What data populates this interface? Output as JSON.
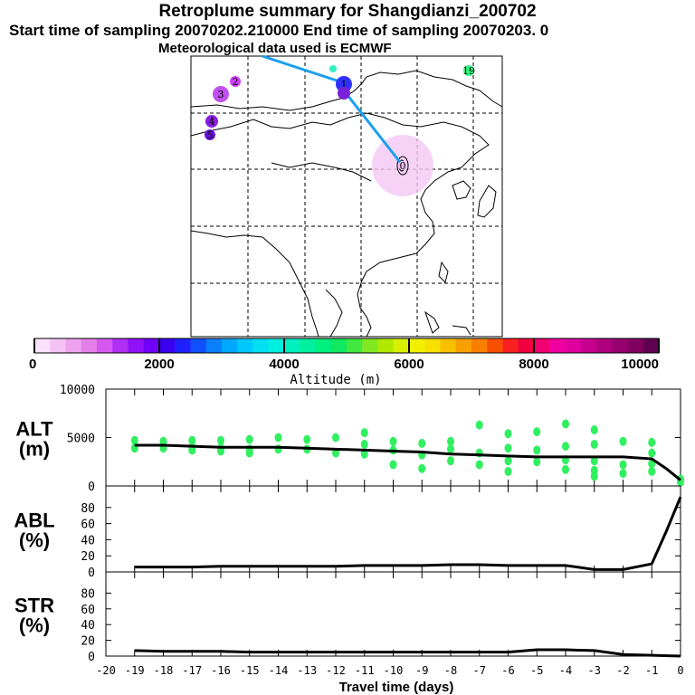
{
  "header": {
    "title": "Retroplume summary for Shangdianzi_200702",
    "sampling_line": "Start time of sampling 20070202.210000     End time of sampling 20070203.     0",
    "met_line": "Meteorological data used is ECMWF"
  },
  "map": {
    "trajectory_labels": [
      "0",
      "1",
      "2",
      "3",
      "4",
      "5",
      "19"
    ],
    "point_colors": {
      "0": "#f0c0f0",
      "1": "#3030ff",
      "2": "#d040ff",
      "3": "#c050f0",
      "4": "#8a1ee0",
      "5": "#6a14d8",
      "19": "#30f080"
    },
    "path_color": "#1aa0f0"
  },
  "colorbar": {
    "label": "Altitude (m)",
    "ticks": [
      "0",
      "2000",
      "4000",
      "6000",
      "8000",
      "10000"
    ],
    "colors": [
      "#fbe0fb",
      "#f4c3f4",
      "#eda2ed",
      "#e47fe8",
      "#d458f0",
      "#b02ff4",
      "#9010f8",
      "#7000f8",
      "#3a00f0",
      "#2020ff",
      "#1050ff",
      "#0a80ff",
      "#00a8ff",
      "#00c8ff",
      "#00e0f0",
      "#00f0e0",
      "#00f0c0",
      "#00f0a0",
      "#00f080",
      "#10e860",
      "#40e840",
      "#80e820",
      "#b0e800",
      "#d8f000",
      "#f0f000",
      "#f8e000",
      "#f8c000",
      "#f8a000",
      "#f88000",
      "#f85000",
      "#f82020",
      "#f00040",
      "#f00070",
      "#f000a0",
      "#e000a0",
      "#c80090",
      "#b00080",
      "#980070",
      "#800060",
      "#600050"
    ]
  },
  "chart_data": [
    {
      "type": "line",
      "name": "ALT",
      "ylabel": "ALT (m)",
      "ylabel_lines": [
        "ALT",
        "(m)"
      ],
      "ylim": [
        0,
        10000
      ],
      "yticks": [
        "0",
        "5000",
        "10000"
      ],
      "x": [
        -19,
        -18,
        -17,
        -16,
        -15,
        -14,
        -13,
        -12,
        -11,
        -10,
        -9,
        -8,
        -7,
        -6,
        -5,
        -4,
        -3,
        -2,
        -1,
        -0.5,
        0
      ],
      "values": [
        4200,
        4200,
        4100,
        4000,
        4000,
        4000,
        3900,
        3800,
        3700,
        3600,
        3500,
        3300,
        3200,
        3100,
        3000,
        3000,
        3000,
        3000,
        2800,
        1800,
        600
      ],
      "scatter": {
        "color": "#30f060",
        "points": [
          [
            -19,
            4700
          ],
          [
            -19,
            3900
          ],
          [
            -18,
            4600
          ],
          [
            -18,
            3900
          ],
          [
            -17,
            4700
          ],
          [
            -17,
            4000
          ],
          [
            -17,
            3700
          ],
          [
            -16,
            4700
          ],
          [
            -16,
            3900
          ],
          [
            -16,
            3600
          ],
          [
            -15,
            4800
          ],
          [
            -15,
            3800
          ],
          [
            -15,
            3400
          ],
          [
            -14,
            5000
          ],
          [
            -14,
            3800
          ],
          [
            -13,
            4800
          ],
          [
            -13,
            3800
          ],
          [
            -12,
            5000
          ],
          [
            -12,
            3400
          ],
          [
            -11,
            5500
          ],
          [
            -11,
            4300
          ],
          [
            -11,
            3300
          ],
          [
            -10,
            4600
          ],
          [
            -10,
            3700
          ],
          [
            -10,
            2200
          ],
          [
            -9,
            4400
          ],
          [
            -9,
            3200
          ],
          [
            -9,
            1800
          ],
          [
            -8,
            4600
          ],
          [
            -8,
            3800
          ],
          [
            -8,
            2600
          ],
          [
            -7,
            6300
          ],
          [
            -7,
            3400
          ],
          [
            -7,
            2200
          ],
          [
            -6,
            5400
          ],
          [
            -6,
            3900
          ],
          [
            -6,
            2600
          ],
          [
            -6,
            1500
          ],
          [
            -5,
            5600
          ],
          [
            -5,
            3700
          ],
          [
            -5,
            2500
          ],
          [
            -4,
            6400
          ],
          [
            -4,
            4100
          ],
          [
            -4,
            2700
          ],
          [
            -4,
            1700
          ],
          [
            -3,
            5800
          ],
          [
            -3,
            4300
          ],
          [
            -3,
            2600
          ],
          [
            -3,
            1600
          ],
          [
            -3,
            1000
          ],
          [
            -2,
            4600
          ],
          [
            -2,
            2200
          ],
          [
            -2,
            1300
          ],
          [
            -1,
            4500
          ],
          [
            -1,
            3400
          ],
          [
            -1,
            2300
          ],
          [
            -1,
            1500
          ],
          [
            0,
            700
          ],
          [
            0,
            400
          ]
        ]
      }
    },
    {
      "type": "line",
      "name": "ABL",
      "ylabel": "ABL (%)",
      "ylabel_lines": [
        "ABL",
        "(%)"
      ],
      "ylim": [
        0,
        100
      ],
      "yticks": [
        "0",
        "20",
        "40",
        "60",
        "80"
      ],
      "x": [
        -19,
        -18,
        -17,
        -16,
        -15,
        -14,
        -13,
        -12,
        -11,
        -10,
        -9,
        -8,
        -7,
        -6,
        -5,
        -4,
        -3,
        -2,
        -1,
        -0.5,
        0
      ],
      "values": [
        6,
        6,
        6,
        7,
        7,
        7,
        7,
        7,
        8,
        8,
        8,
        9,
        9,
        8,
        8,
        8,
        3,
        3,
        10,
        50,
        93
      ]
    },
    {
      "type": "line",
      "name": "STR",
      "ylabel": "STR (%)",
      "ylabel_lines": [
        "STR",
        "(%)"
      ],
      "ylim": [
        0,
        100
      ],
      "yticks": [
        "0",
        "20",
        "40",
        "60",
        "80"
      ],
      "x": [
        -19,
        -18,
        -17,
        -16,
        -15,
        -14,
        -13,
        -12,
        -11,
        -10,
        -9,
        -8,
        -7,
        -6,
        -5,
        -4,
        -3,
        -2,
        -1,
        0
      ],
      "values": [
        7,
        6,
        6,
        6,
        5,
        5,
        5,
        5,
        5,
        5,
        5,
        5,
        5,
        5,
        8,
        8,
        7,
        2,
        1,
        0
      ],
      "xlabel": "Travel time (days)",
      "xticks": [
        "-20",
        "-19",
        "-18",
        "-17",
        "-16",
        "-15",
        "-14",
        "-13",
        "-12",
        "-11",
        "-10",
        "-9",
        "-8",
        "-7",
        "-6",
        "-5",
        "-4",
        "-3",
        "-2",
        "-1",
        "0"
      ]
    }
  ]
}
